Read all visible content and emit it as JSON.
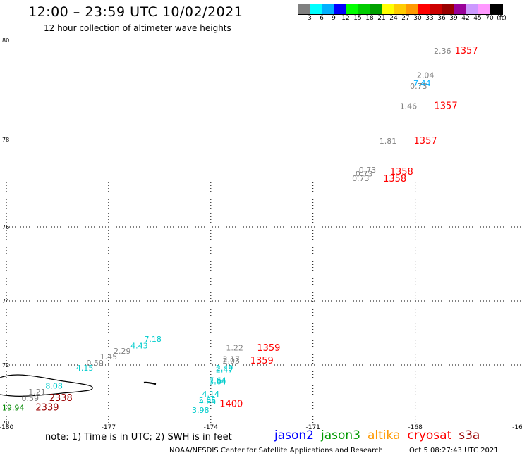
{
  "header": {
    "title": "12:00 – 23:59 UTC 10/02/2021",
    "subtitle": "12 hour collection of altimeter wave heights"
  },
  "colorbar": {
    "colors": [
      "#808080",
      "#00ffff",
      "#00b0ff",
      "#0000ff",
      "#00ff00",
      "#00cc00",
      "#00a000",
      "#ffff00",
      "#ffcc00",
      "#ff9900",
      "#ff0000",
      "#cc0000",
      "#990000",
      "#990099",
      "#cc99ff",
      "#ff99ff",
      "#000000"
    ],
    "labels": [
      "3",
      "6",
      "9",
      "12",
      "15",
      "18",
      "21",
      "24",
      "27",
      "30",
      "33",
      "36",
      "39",
      "42",
      "45",
      "70",
      "(ft)"
    ]
  },
  "axes": {
    "lat_labels": [
      "80",
      "78",
      "76",
      "74",
      "72",
      "70"
    ],
    "lon_labels": [
      "-180",
      "-177",
      "-174",
      "-171",
      "-168",
      "-16"
    ]
  },
  "observations": [
    {
      "text": "2.36",
      "lon": -167.2,
      "lat": 79.73,
      "color": "#808080"
    },
    {
      "text": "2.04",
      "lon": -167.7,
      "lat": 79.24,
      "color": "#808080"
    },
    {
      "text": "7.44",
      "lon": -167.8,
      "lat": 79.08,
      "color": "#00b0ff"
    },
    {
      "text": "0.73",
      "lon": -167.9,
      "lat": 79.02,
      "color": "#808080"
    },
    {
      "text": "1.46",
      "lon": -168.2,
      "lat": 78.62,
      "color": "#808080"
    },
    {
      "text": "1.81",
      "lon": -168.8,
      "lat": 77.9,
      "color": "#808080"
    },
    {
      "text": "0.73",
      "lon": -169.4,
      "lat": 77.24,
      "color": "#808080"
    },
    {
      "text": "0.73",
      "lon": -169.5,
      "lat": 77.15,
      "color": "#808080"
    },
    {
      "text": "0.73",
      "lon": -169.6,
      "lat": 77.05,
      "color": "#808080"
    },
    {
      "text": "7.18",
      "lon": -175.7,
      "lat": 72.72,
      "color": "#00cccc"
    },
    {
      "text": "4.43",
      "lon": -176.1,
      "lat": 72.52,
      "color": "#00cccc"
    },
    {
      "text": "2.29",
      "lon": -176.6,
      "lat": 72.35,
      "color": "#808080"
    },
    {
      "text": "1.45",
      "lon": -177.0,
      "lat": 72.18,
      "color": "#808080"
    },
    {
      "text": "0.59",
      "lon": -177.4,
      "lat": 71.97,
      "color": "#808080"
    },
    {
      "text": "4.15",
      "lon": -177.7,
      "lat": 71.8,
      "color": "#00cccc"
    },
    {
      "text": "1.22",
      "lon": -173.3,
      "lat": 72.45,
      "color": "#808080"
    },
    {
      "text": "2.17",
      "lon": -173.4,
      "lat": 72.1,
      "color": "#808080"
    },
    {
      "text": "2.03",
      "lon": -173.4,
      "lat": 72.04,
      "color": "#808080"
    },
    {
      "text": "2.49",
      "lon": -173.6,
      "lat": 71.8,
      "color": "#00cccc"
    },
    {
      "text": "2.47",
      "lon": -173.6,
      "lat": 71.75,
      "color": "#00cccc"
    },
    {
      "text": "7.64",
      "lon": -173.8,
      "lat": 71.38,
      "color": "#00cccc"
    },
    {
      "text": "3.64",
      "lon": -173.8,
      "lat": 71.33,
      "color": "#00cccc"
    },
    {
      "text": "4.14",
      "lon": -174.0,
      "lat": 70.9,
      "color": "#00cccc"
    },
    {
      "text": "5.05",
      "lon": -174.1,
      "lat": 70.68,
      "color": "#00cccc"
    },
    {
      "text": "4.85",
      "lon": -174.1,
      "lat": 70.63,
      "color": "#00cccc"
    },
    {
      "text": "3.98",
      "lon": -174.3,
      "lat": 70.34,
      "color": "#00cccc"
    },
    {
      "text": "8.08",
      "lon": -178.6,
      "lat": 71.18,
      "color": "#00cccc"
    },
    {
      "text": "1.21",
      "lon": -179.1,
      "lat": 70.98,
      "color": "#808080"
    },
    {
      "text": "0.59",
      "lon": -179.3,
      "lat": 70.76,
      "color": "#808080"
    },
    {
      "text": "19.94",
      "lon": -179.8,
      "lat": 70.43,
      "color": "#008800"
    }
  ],
  "time_labels": [
    {
      "text": "1357",
      "lon": -166.5,
      "lat": 79.73,
      "color": "#ff0000"
    },
    {
      "text": "1357",
      "lon": -167.1,
      "lat": 78.62,
      "color": "#ff0000"
    },
    {
      "text": "1357",
      "lon": -167.7,
      "lat": 77.9,
      "color": "#ff0000"
    },
    {
      "text": "1358",
      "lon": -168.4,
      "lat": 77.19,
      "color": "#ff0000"
    },
    {
      "text": "1358",
      "lon": -168.6,
      "lat": 77.03,
      "color": "#ff0000"
    },
    {
      "text": "1359",
      "lon": -172.3,
      "lat": 72.44,
      "color": "#ff0000"
    },
    {
      "text": "1359",
      "lon": -172.5,
      "lat": 72.04,
      "color": "#ff0000"
    },
    {
      "text": "1400",
      "lon": -173.4,
      "lat": 70.55,
      "color": "#ff0000"
    },
    {
      "text": "2338",
      "lon": -178.4,
      "lat": 70.76,
      "color": "#990000"
    },
    {
      "text": "2339",
      "lon": -178.8,
      "lat": 70.43,
      "color": "#990000"
    }
  ],
  "footer": {
    "note": "note: 1) Time is in UTC; 2) SWH is in feet",
    "satellites": [
      {
        "name": "jason2",
        "color": "#0000ff"
      },
      {
        "name": "jason3",
        "color": "#009900"
      },
      {
        "name": "altika",
        "color": "#ff9900"
      },
      {
        "name": "cryosat",
        "color": "#ff0000"
      },
      {
        "name": "s3a",
        "color": "#990000"
      }
    ],
    "credit": "NOAA/NESDIS Center for Satellite Applications and Research",
    "timestamp": "Oct  5 08:27:43 UTC 2021"
  }
}
